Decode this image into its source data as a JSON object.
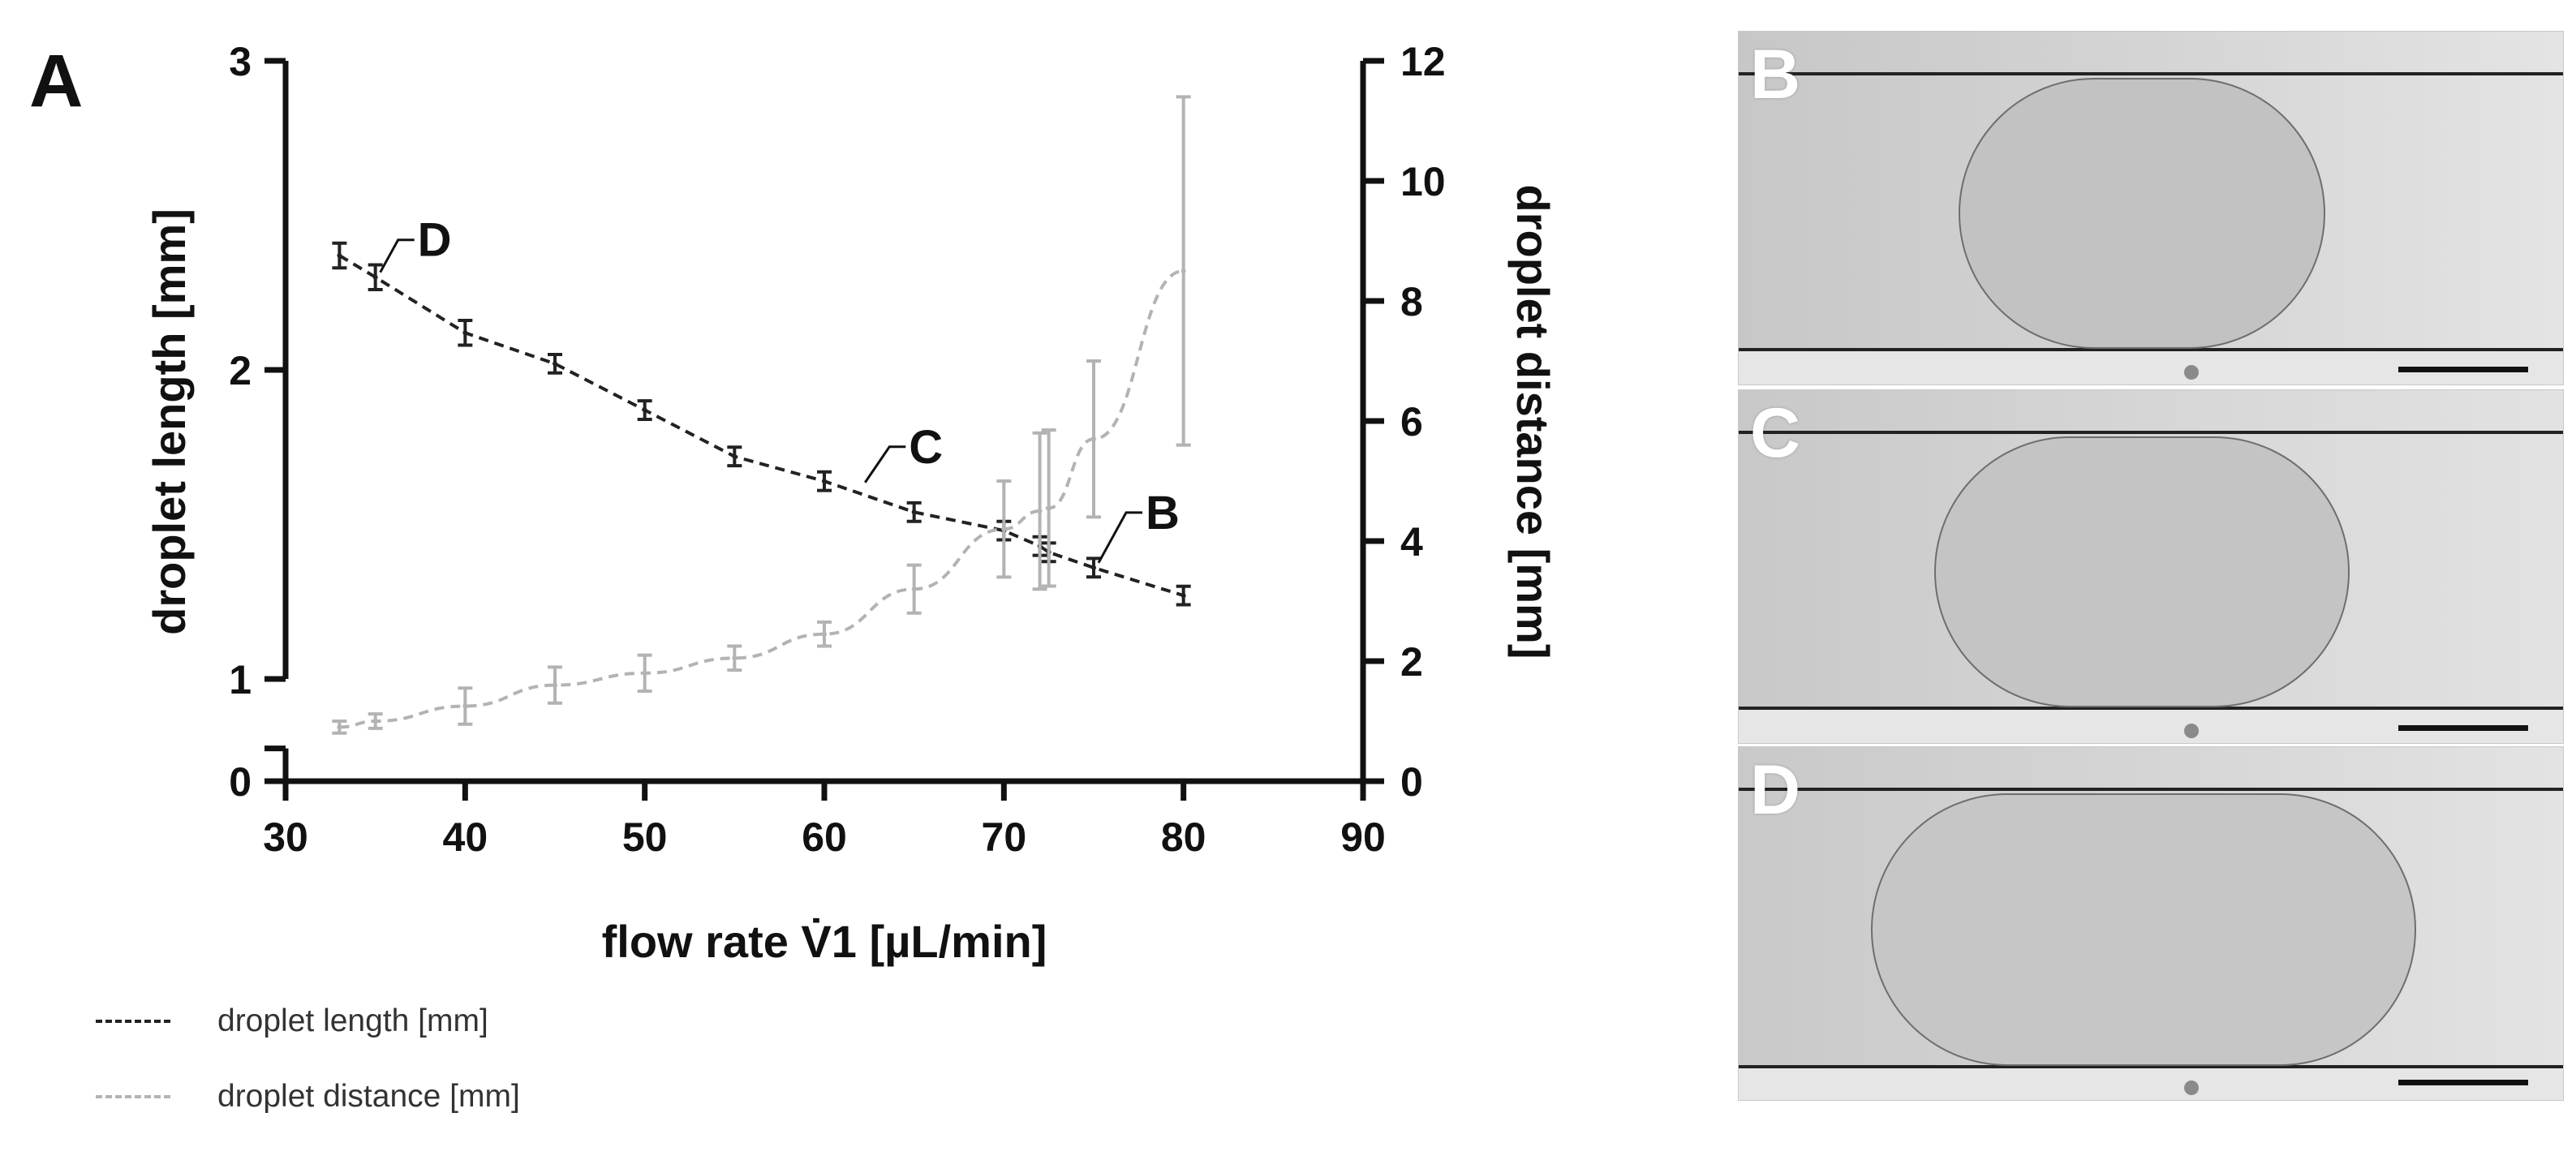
{
  "panels": {
    "a_label": "A",
    "b_label": "B",
    "c_label": "C",
    "d_label": "D"
  },
  "legend": {
    "length_label": "droplet length [mm]",
    "distance_label": "droplet distance [mm]"
  },
  "colors": {
    "length_series": "#222222",
    "distance_series": "#b3b3b3",
    "axis": "#111111",
    "scale_bar": "#111111"
  },
  "chart_data": {
    "type": "line",
    "xlabel": "flow rate V̇1 [µL/min]",
    "ylabel_left": "droplet length [mm]",
    "ylabel_right": "droplet distance [mm]",
    "xlim": [
      30,
      90
    ],
    "x_ticks": [
      30,
      40,
      50,
      60,
      70,
      80,
      90
    ],
    "ylim_left": [
      0,
      3
    ],
    "y_ticks_left": [
      0,
      1,
      2,
      3
    ],
    "left_axis_break": [
      0.32,
      1.0
    ],
    "ylim_right": [
      0,
      12
    ],
    "y_ticks_right": [
      0,
      2,
      4,
      6,
      8,
      10,
      12
    ],
    "series": [
      {
        "name": "droplet length [mm]",
        "axis": "left",
        "style": "dashed-dark",
        "x": [
          33,
          35,
          40,
          45,
          50,
          55,
          60,
          65,
          70,
          72,
          72.5,
          75,
          80
        ],
        "values": [
          2.37,
          2.3,
          2.12,
          2.02,
          1.87,
          1.72,
          1.64,
          1.54,
          1.48,
          1.43,
          1.41,
          1.36,
          1.27
        ],
        "errors": [
          0.04,
          0.04,
          0.04,
          0.03,
          0.03,
          0.03,
          0.03,
          0.03,
          0.03,
          0.03,
          0.03,
          0.03,
          0.03
        ]
      },
      {
        "name": "droplet distance [mm]",
        "axis": "right",
        "style": "dashed-grey",
        "x": [
          33,
          35,
          40,
          45,
          50,
          55,
          60,
          65,
          70,
          72,
          72.5,
          75,
          80
        ],
        "values": [
          0.9,
          1.0,
          1.25,
          1.6,
          1.8,
          2.05,
          2.45,
          3.2,
          4.2,
          4.5,
          4.55,
          5.7,
          8.5
        ],
        "errors": [
          0.1,
          0.12,
          0.3,
          0.3,
          0.3,
          0.2,
          0.2,
          0.4,
          0.8,
          1.3,
          1.3,
          1.3,
          2.9
        ]
      }
    ],
    "annotations": [
      {
        "text": "D",
        "x": 35,
        "y": 2.3
      },
      {
        "text": "C",
        "x": 62,
        "y": 1.62
      },
      {
        "text": "B",
        "x": 75,
        "y": 1.36
      }
    ]
  }
}
